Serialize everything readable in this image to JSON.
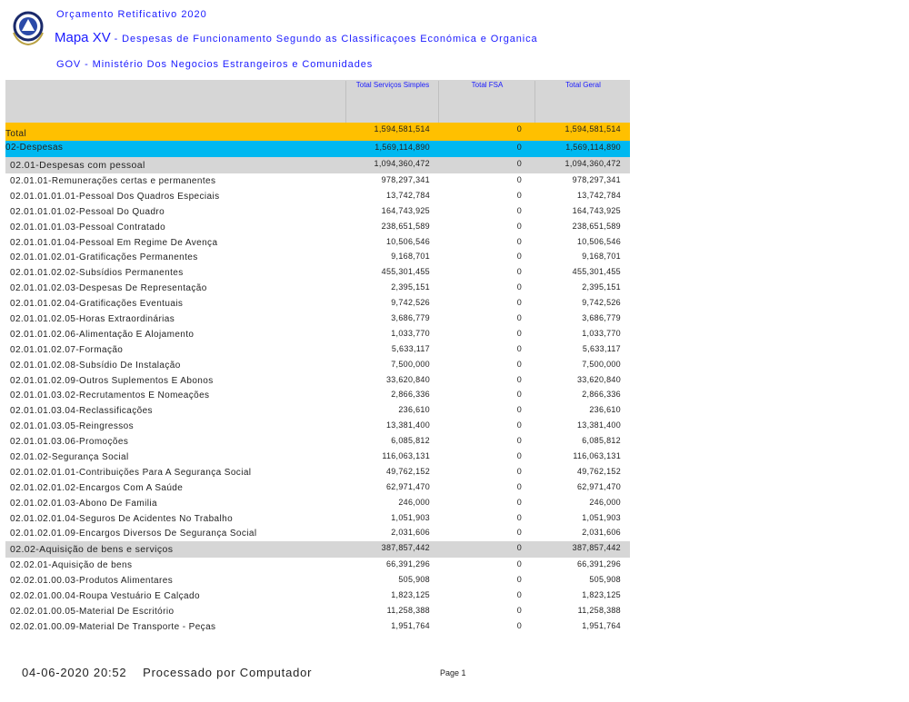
{
  "header": {
    "line1": "Orçamento Retificativo 2020",
    "map_label": "Mapa XV",
    "map_title": " - Despesas de Funcionamento Segundo as Classificaçoes Económica e Organica",
    "ministry": "GOV - Ministério Dos Negocios Estrangeiros e Comunidades"
  },
  "columns": [
    "Total Serviços Simples",
    "Total FSA",
    "Total Geral"
  ],
  "colors": {
    "total": "#ffc000",
    "despesas": "#00b8f0",
    "group": "#d6d6d6",
    "title": "#1a1aff"
  },
  "rows": [
    {
      "type": "total",
      "label": "Total",
      "v": [
        "1,594,581,514",
        "0",
        "1,594,581,514"
      ]
    },
    {
      "type": "desp",
      "label": "02-Despesas",
      "v": [
        "1,569,114,890",
        "0",
        "1,569,114,890"
      ]
    },
    {
      "type": "grp",
      "label": "02.01-Despesas com pessoal",
      "v": [
        "1,094,360,472",
        "0",
        "1,094,360,472"
      ]
    },
    {
      "label": "02.01.01-Remunerações certas e permanentes",
      "v": [
        "978,297,341",
        "0",
        "978,297,341"
      ]
    },
    {
      "label": "02.01.01.01.01-Pessoal Dos Quadros Especiais",
      "v": [
        "13,742,784",
        "0",
        "13,742,784"
      ]
    },
    {
      "label": "02.01.01.01.02-Pessoal Do Quadro",
      "v": [
        "164,743,925",
        "0",
        "164,743,925"
      ]
    },
    {
      "label": "02.01.01.01.03-Pessoal Contratado",
      "v": [
        "238,651,589",
        "0",
        "238,651,589"
      ]
    },
    {
      "label": "02.01.01.01.04-Pessoal Em Regime De Avença",
      "v": [
        "10,506,546",
        "0",
        "10,506,546"
      ]
    },
    {
      "label": "02.01.01.02.01-Gratificações Permanentes",
      "v": [
        "9,168,701",
        "0",
        "9,168,701"
      ]
    },
    {
      "label": "02.01.01.02.02-Subsídios Permanentes",
      "v": [
        "455,301,455",
        "0",
        "455,301,455"
      ]
    },
    {
      "label": "02.01.01.02.03-Despesas De Representação",
      "v": [
        "2,395,151",
        "0",
        "2,395,151"
      ]
    },
    {
      "label": "02.01.01.02.04-Gratificações Eventuais",
      "v": [
        "9,742,526",
        "0",
        "9,742,526"
      ]
    },
    {
      "label": "02.01.01.02.05-Horas Extraordinárias",
      "v": [
        "3,686,779",
        "0",
        "3,686,779"
      ]
    },
    {
      "label": "02.01.01.02.06-Alimentação E Alojamento",
      "v": [
        "1,033,770",
        "0",
        "1,033,770"
      ]
    },
    {
      "label": "02.01.01.02.07-Formação",
      "v": [
        "5,633,117",
        "0",
        "5,633,117"
      ]
    },
    {
      "label": "02.01.01.02.08-Subsídio De Instalação",
      "v": [
        "7,500,000",
        "0",
        "7,500,000"
      ]
    },
    {
      "label": "02.01.01.02.09-Outros Suplementos E Abonos",
      "v": [
        "33,620,840",
        "0",
        "33,620,840"
      ]
    },
    {
      "label": "02.01.01.03.02-Recrutamentos E Nomeações",
      "v": [
        "2,866,336",
        "0",
        "2,866,336"
      ]
    },
    {
      "label": "02.01.01.03.04-Reclassificações",
      "v": [
        "236,610",
        "0",
        "236,610"
      ]
    },
    {
      "label": "02.01.01.03.05-Reingressos",
      "v": [
        "13,381,400",
        "0",
        "13,381,400"
      ]
    },
    {
      "label": "02.01.01.03.06-Promoções",
      "v": [
        "6,085,812",
        "0",
        "6,085,812"
      ]
    },
    {
      "label": "02.01.02-Segurança Social",
      "v": [
        "116,063,131",
        "0",
        "116,063,131"
      ]
    },
    {
      "label": "02.01.02.01.01-Contribuições Para A Segurança Social",
      "v": [
        "49,762,152",
        "0",
        "49,762,152"
      ]
    },
    {
      "label": "02.01.02.01.02-Encargos Com A Saúde",
      "v": [
        "62,971,470",
        "0",
        "62,971,470"
      ]
    },
    {
      "label": "02.01.02.01.03-Abono De Familia",
      "v": [
        "246,000",
        "0",
        "246,000"
      ]
    },
    {
      "label": "02.01.02.01.04-Seguros De Acidentes No Trabalho",
      "v": [
        "1,051,903",
        "0",
        "1,051,903"
      ]
    },
    {
      "label": "02.01.02.01.09-Encargos Diversos De Segurança Social",
      "v": [
        "2,031,606",
        "0",
        "2,031,606"
      ]
    },
    {
      "type": "grp",
      "label": "02.02-Aquisição de bens e serviços",
      "v": [
        "387,857,442",
        "0",
        "387,857,442"
      ]
    },
    {
      "label": "02.02.01-Aquisição de bens",
      "v": [
        "66,391,296",
        "0",
        "66,391,296"
      ]
    },
    {
      "label": "02.02.01.00.03-Produtos Alimentares",
      "v": [
        "505,908",
        "0",
        "505,908"
      ]
    },
    {
      "label": "02.02.01.00.04-Roupa Vestuário E Calçado",
      "v": [
        "1,823,125",
        "0",
        "1,823,125"
      ]
    },
    {
      "label": "02.02.01.00.05-Material De Escritório",
      "v": [
        "11,258,388",
        "0",
        "11,258,388"
      ]
    },
    {
      "label": "02.02.01.00.09-Material De Transporte - Peças",
      "v": [
        "1,951,764",
        "0",
        "1,951,764"
      ]
    }
  ],
  "footer": {
    "timestamp": "04-06-2020 20:52",
    "processed": "Processado por Computador",
    "page": "Page 1"
  }
}
